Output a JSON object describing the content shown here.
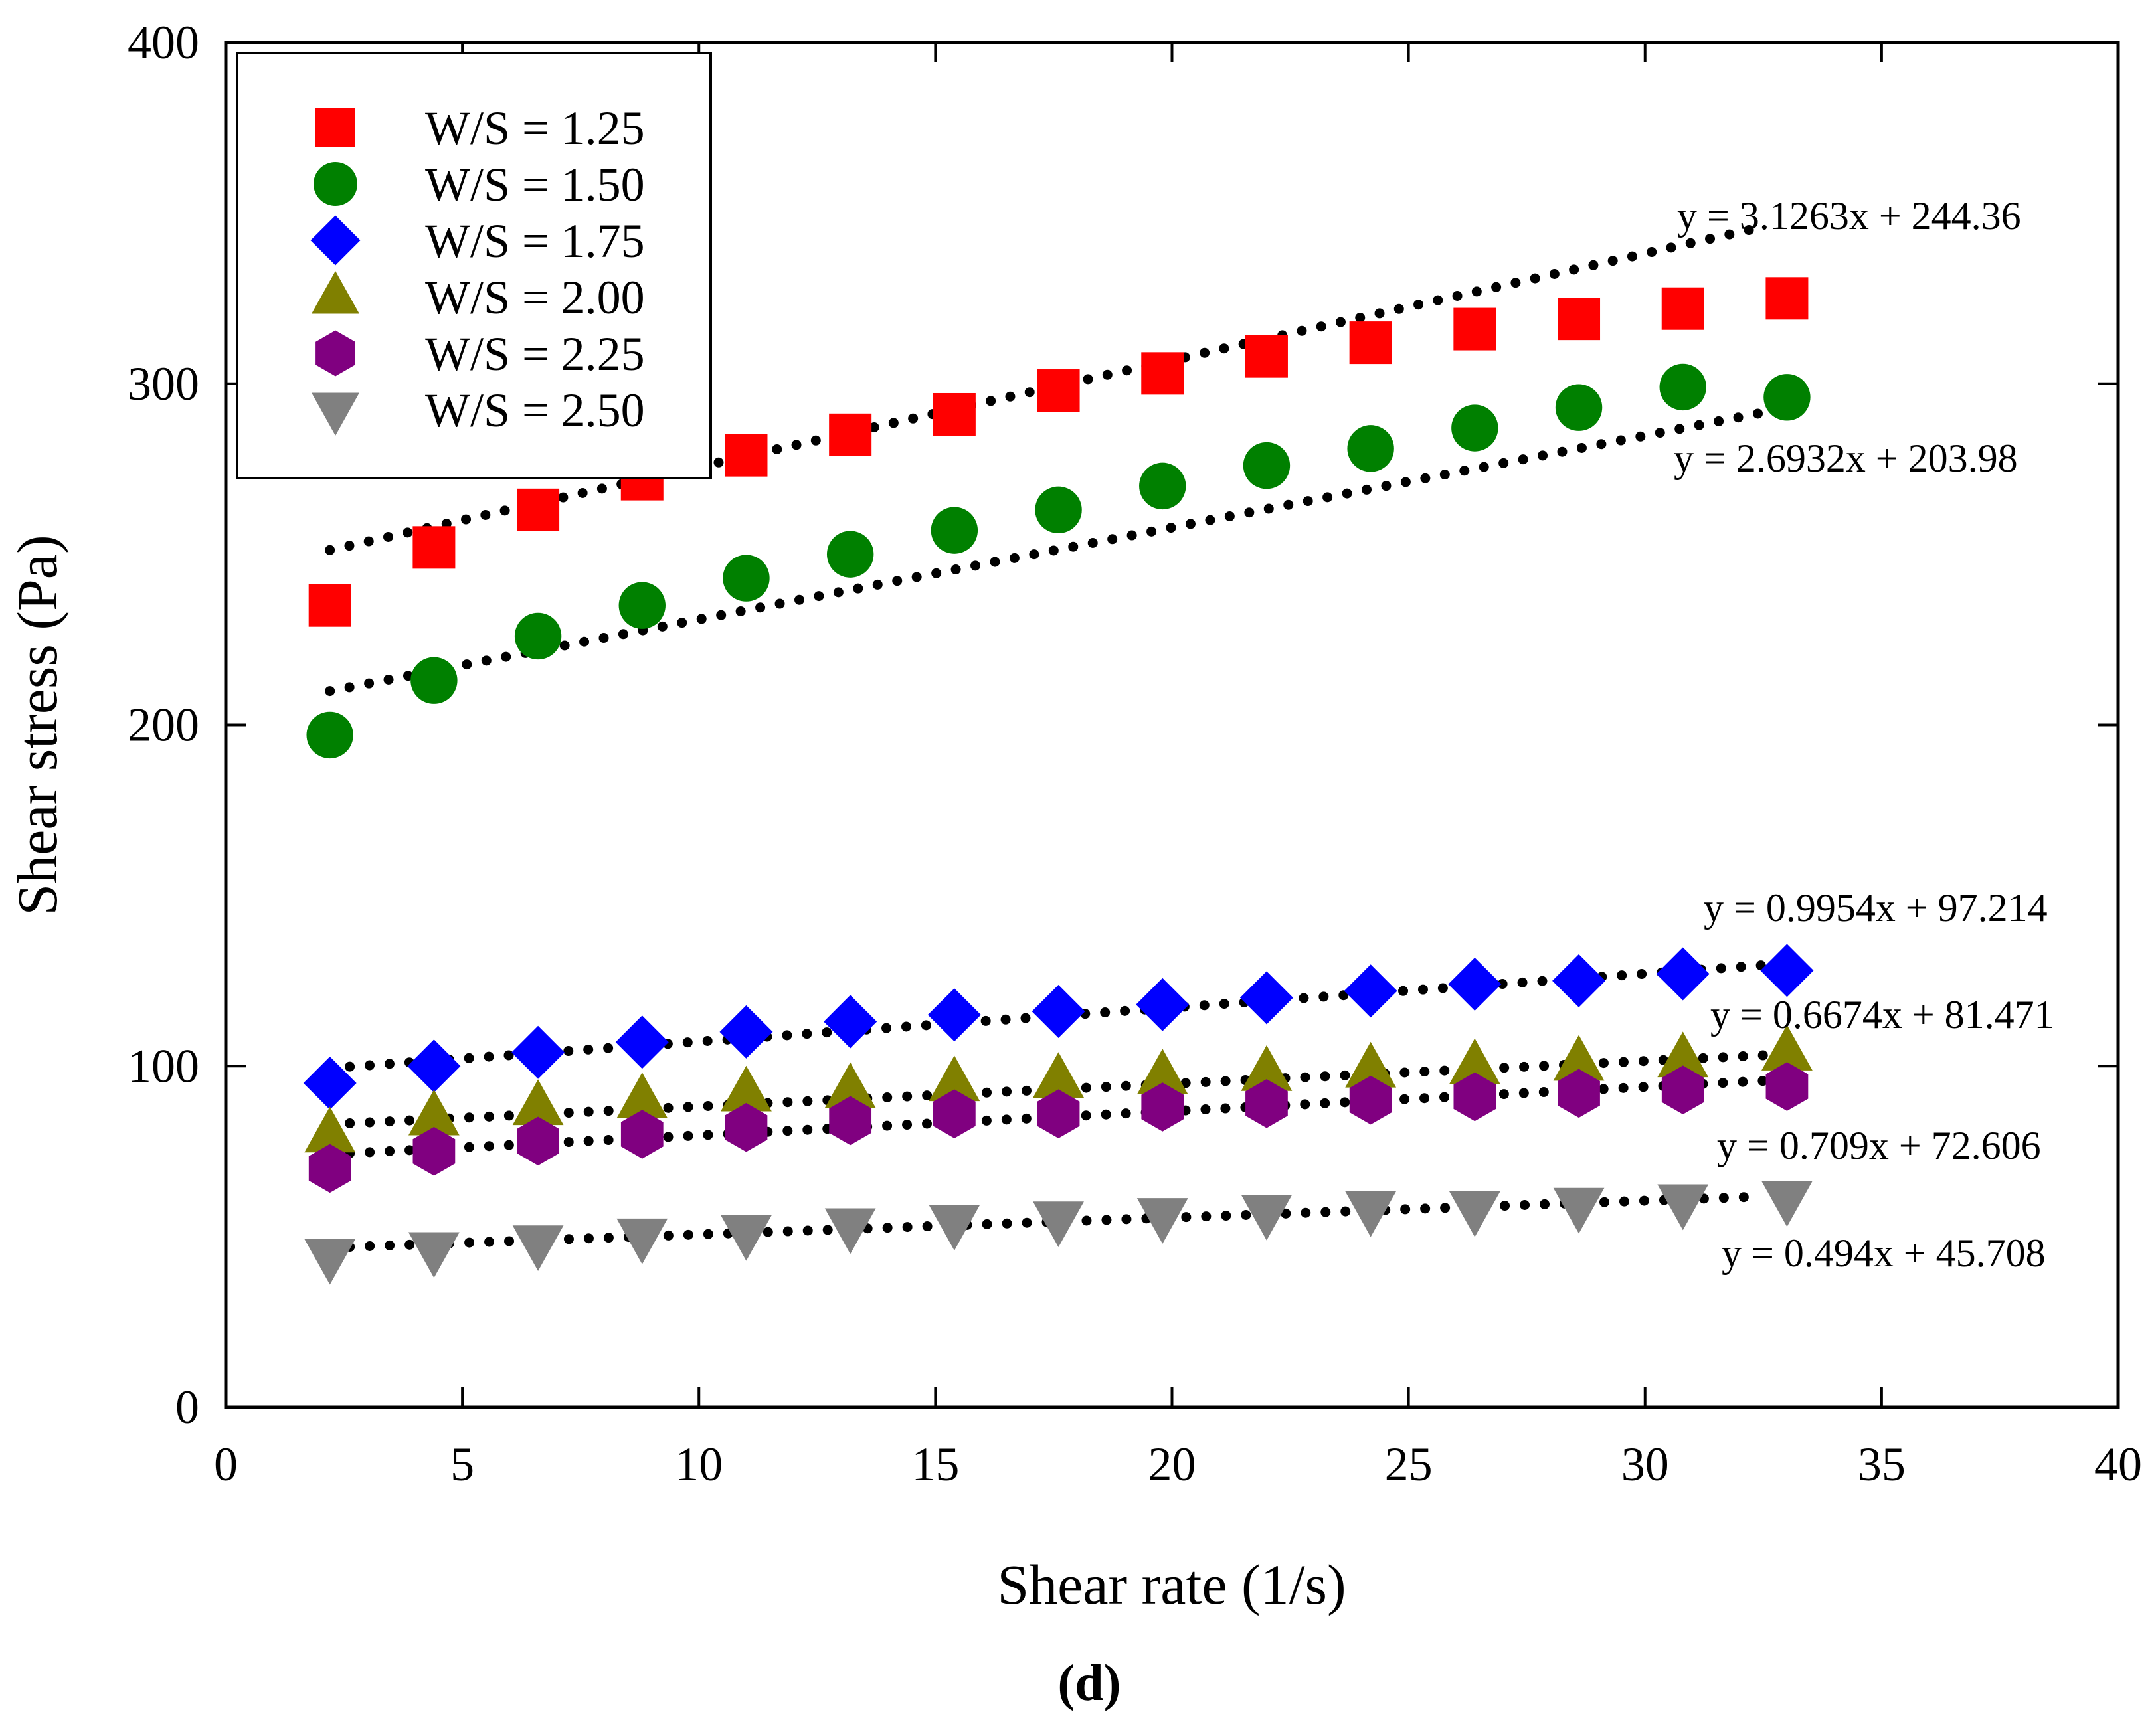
{
  "chart_data": {
    "type": "scatter",
    "title": "",
    "caption": "(d)",
    "xlabel": "Shear rate (1/s)",
    "ylabel": "Shear stress (Pa)",
    "xlim": [
      0,
      40
    ],
    "ylim": [
      0,
      400
    ],
    "xticks": [
      0,
      5,
      10,
      15,
      20,
      25,
      30,
      35,
      40
    ],
    "yticks": [
      0,
      100,
      200,
      300,
      400
    ],
    "grid": false,
    "legend_position": "top-left",
    "x": [
      2.2,
      4.4,
      6.6,
      8.8,
      11.0,
      13.2,
      15.4,
      17.6,
      19.8,
      22.0,
      24.2,
      26.4,
      28.6,
      30.8,
      33.0
    ],
    "series": [
      {
        "name": "W/S = 1.25",
        "marker": "square",
        "color": "#ff0000",
        "values": [
          235,
          252,
          263,
          272,
          279,
          285,
          291,
          298,
          303,
          308,
          312,
          316,
          319,
          322,
          325
        ],
        "fit_label": "y = 3.1263x + 244.36",
        "fit": {
          "slope": 3.1263,
          "intercept": 244.36
        }
      },
      {
        "name": "W/S = 1.50",
        "marker": "circle",
        "color": "#008000",
        "values": [
          197,
          213,
          226,
          235,
          243,
          250,
          257,
          263,
          270,
          276,
          281,
          287,
          293,
          299,
          296
        ],
        "fit_label": "y = 2.6932x + 203.98",
        "fit": {
          "slope": 2.6932,
          "intercept": 203.98
        }
      },
      {
        "name": "W/S = 1.75",
        "marker": "diamond",
        "color": "#0000ff",
        "values": [
          95,
          100,
          104,
          107,
          110,
          113,
          115,
          116,
          118,
          120,
          122,
          124,
          125,
          127,
          128
        ],
        "fit_label": "y = 0.9954x + 97.214",
        "fit": {
          "slope": 0.9954,
          "intercept": 97.214
        }
      },
      {
        "name": "W/S = 2.00",
        "marker": "triangle-up",
        "color": "#808000",
        "values": [
          80,
          85,
          88,
          90,
          92,
          93,
          95,
          96,
          97,
          98,
          99,
          100,
          101,
          102,
          104
        ],
        "fit_label": "y = 0.6674x + 81.471",
        "fit": {
          "slope": 0.6674,
          "intercept": 81.471
        }
      },
      {
        "name": "W/S = 2.25",
        "marker": "hexagon",
        "color": "#800080",
        "values": [
          70,
          75,
          78,
          80,
          82,
          84,
          86,
          86,
          88,
          89,
          90,
          91,
          92,
          93,
          94
        ],
        "fit_label": "y = 0.709x + 72.606",
        "fit": {
          "slope": 0.709,
          "intercept": 72.606
        }
      },
      {
        "name": "W/S = 2.50",
        "marker": "triangle-down",
        "color": "#808080",
        "values": [
          44,
          46,
          48,
          50,
          51,
          53,
          54,
          55,
          56,
          57,
          58,
          58,
          59,
          60,
          61
        ],
        "fit_label": "y = 0.494x + 45.708",
        "fit": {
          "slope": 0.494,
          "intercept": 45.708
        }
      }
    ]
  }
}
